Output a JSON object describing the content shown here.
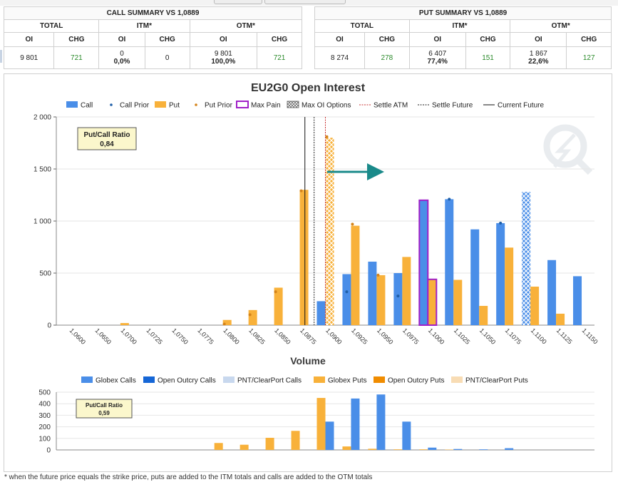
{
  "call_summary": {
    "title": "CALL SUMMARY VS 1,0889",
    "groups": [
      "TOTAL",
      "ITM*",
      "OTM*"
    ],
    "subheaders": [
      "OI",
      "CHG",
      "OI",
      "CHG",
      "OI",
      "CHG"
    ],
    "total_oi": "9 801",
    "total_chg": "721",
    "itm_oi": "0",
    "itm_pct": "0,0%",
    "itm_chg": "0",
    "otm_oi": "9 801",
    "otm_pct": "100,0%",
    "otm_chg": "721"
  },
  "put_summary": {
    "title": "PUT SUMMARY VS 1,0889",
    "groups": [
      "TOTAL",
      "ITM*",
      "OTM*"
    ],
    "subheaders": [
      "OI",
      "CHG",
      "OI",
      "CHG",
      "OI",
      "CHG"
    ],
    "total_oi": "8 274",
    "total_chg": "278",
    "itm_oi": "6 407",
    "itm_pct": "77,4%",
    "itm_chg": "151",
    "otm_oi": "1 867",
    "otm_pct": "22,6%",
    "otm_chg": "127"
  },
  "footnote": "* when the future price equals the strike price, puts are added to the ITM totals and calls are added to the OTM totals",
  "colors": {
    "call": "#4a8ee8",
    "put": "#f8b13a",
    "prior_call": "#1f5fa8",
    "prior_put": "#d4831a",
    "max_pain": "#a020c8",
    "settle_atm": "#c83030",
    "arrow": "#1a8a8a",
    "oc_call": "#1566d6",
    "pnt_call": "#c8d8ee",
    "oc_put": "#f08c00",
    "pnt_put": "#f8dcb4"
  },
  "chart_data": [
    {
      "type": "bar",
      "title": "EU2G0 Open Interest",
      "legend": [
        "Call",
        "Call Prior",
        "Put",
        "Put Prior",
        "Max Pain",
        "Max OI Options",
        "Settle ATM",
        "Settle Future",
        "Current Future"
      ],
      "categories": [
        "1,0600",
        "1,0650",
        "1,0700",
        "1,0725",
        "1,0750",
        "1,0775",
        "1,0800",
        "1,0825",
        "1,0850",
        "1,0875",
        "1,0900",
        "1,0925",
        "1,0950",
        "1,0975",
        "1,1000",
        "1,1025",
        "1,1050",
        "1,1075",
        "1,1100",
        "1,1125",
        "1,1150"
      ],
      "series": [
        {
          "name": "Call",
          "values": [
            0,
            0,
            0,
            0,
            0,
            0,
            0,
            0,
            0,
            0,
            230,
            490,
            610,
            500,
            1200,
            1210,
            920,
            980,
            1280,
            625,
            470
          ]
        },
        {
          "name": "Call Prior",
          "values": [
            0,
            0,
            0,
            0,
            0,
            0,
            0,
            0,
            0,
            0,
            0,
            320,
            0,
            280,
            0,
            1210,
            0,
            980,
            0,
            0,
            0
          ]
        },
        {
          "name": "Put",
          "values": [
            0,
            0,
            20,
            0,
            0,
            0,
            50,
            145,
            360,
            1300,
            1800,
            955,
            480,
            655,
            440,
            435,
            185,
            745,
            370,
            110,
            0
          ]
        },
        {
          "name": "Put Prior",
          "values": [
            0,
            0,
            0,
            0,
            0,
            0,
            10,
            100,
            320,
            1290,
            1810,
            970,
            480,
            0,
            0,
            0,
            0,
            0,
            0,
            0,
            0
          ]
        }
      ],
      "max_pain_strike": "1,1000",
      "max_oi_strikes": {
        "put": "1,0900",
        "call": "1,1100"
      },
      "settle_atm": "1,0900",
      "settle_future": 1.0889,
      "current_future": 1.088,
      "annotation": {
        "label": "Put/Call Ratio",
        "value": "0,84"
      },
      "yticks": [
        "0",
        "500",
        "1 000",
        "1 500",
        "2 000"
      ],
      "ylim": [
        0,
        2000
      ],
      "grid": true,
      "legend_position": "top"
    },
    {
      "type": "bar",
      "title": "Volume",
      "legend": [
        "Globex Calls",
        "Open Outcry Calls",
        "PNT/ClearPort Calls",
        "Globex Puts",
        "Open Outcry Puts",
        "PNT/ClearPort Puts"
      ],
      "categories": [
        "1,0600",
        "1,0650",
        "1,0700",
        "1,0725",
        "1,0750",
        "1,0775",
        "1,0800",
        "1,0825",
        "1,0850",
        "1,0875",
        "1,0900",
        "1,0925",
        "1,0950",
        "1,0975",
        "1,1000",
        "1,1025",
        "1,1050",
        "1,1075",
        "1,1100",
        "1,1125",
        "1,1150"
      ],
      "series": [
        {
          "name": "Globex Calls",
          "values": [
            0,
            0,
            0,
            0,
            0,
            0,
            0,
            0,
            0,
            0,
            245,
            445,
            480,
            245,
            20,
            8,
            5,
            15,
            0,
            0,
            0
          ]
        },
        {
          "name": "Globex Puts",
          "values": [
            0,
            0,
            0,
            0,
            0,
            0,
            60,
            45,
            105,
            165,
            450,
            30,
            10,
            5,
            5,
            3,
            0,
            0,
            0,
            0,
            0
          ]
        }
      ],
      "annotation": {
        "label": "Put/Call Ratio",
        "value": "0,59"
      },
      "yticks": [
        "0",
        "100",
        "200",
        "300",
        "400",
        "500"
      ],
      "ylim": [
        0,
        500
      ],
      "grid": true,
      "legend_position": "top"
    }
  ]
}
